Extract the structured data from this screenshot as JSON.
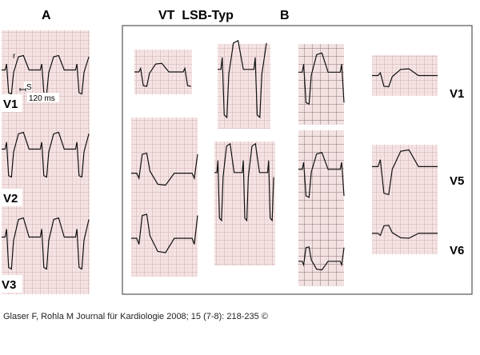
{
  "labels": {
    "panel_a": "A",
    "title": "VT  LSB-Typ",
    "panel_b": "B",
    "left_leads": [
      "V1",
      "V2",
      "V3"
    ],
    "right_leads": [
      "V1",
      "V5",
      "V6"
    ],
    "r_wave": "r",
    "s_wave": "S",
    "duration": "120 ms"
  },
  "caption": "Glaser F, Rohla M Journal für Kardiologie 2008; 15 (7-8): 218-235 ©"
}
